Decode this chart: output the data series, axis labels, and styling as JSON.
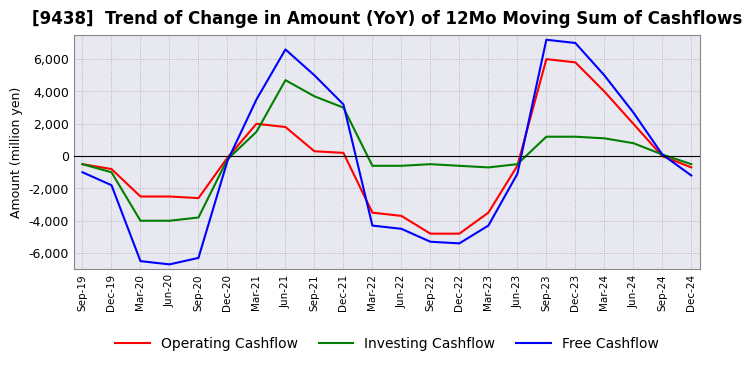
{
  "title": "[9438]  Trend of Change in Amount (YoY) of 12Mo Moving Sum of Cashflows",
  "ylabel": "Amount (million yen)",
  "ylim": [
    -7000,
    7500
  ],
  "yticks": [
    -6000,
    -4000,
    -2000,
    0,
    2000,
    4000,
    6000
  ],
  "x_labels": [
    "Sep-19",
    "Dec-19",
    "Mar-20",
    "Jun-20",
    "Sep-20",
    "Dec-20",
    "Mar-21",
    "Jun-21",
    "Sep-21",
    "Dec-21",
    "Mar-22",
    "Jun-22",
    "Sep-22",
    "Dec-22",
    "Mar-23",
    "Jun-23",
    "Sep-23",
    "Dec-23",
    "Mar-24",
    "Jun-24",
    "Sep-24",
    "Dec-24"
  ],
  "operating": [
    -500,
    -800,
    -2500,
    -2500,
    -2600,
    -100,
    2000,
    1800,
    300,
    200,
    -3500,
    -3700,
    -4800,
    -4800,
    -3500,
    -600,
    6000,
    5800,
    4000,
    2000,
    0,
    -700
  ],
  "investing": [
    -500,
    -1000,
    -4000,
    -4000,
    -3800,
    -200,
    1500,
    4700,
    3700,
    3000,
    -600,
    -600,
    -500,
    -600,
    -700,
    -500,
    1200,
    1200,
    1100,
    800,
    100,
    -500
  ],
  "free": [
    -1000,
    -1800,
    -6500,
    -6700,
    -6300,
    -300,
    3500,
    6600,
    5000,
    3200,
    -4300,
    -4500,
    -5300,
    -5400,
    -4300,
    -1100,
    7200,
    7000,
    5000,
    2700,
    100,
    -1200
  ],
  "operating_color": "#FF0000",
  "investing_color": "#008000",
  "free_color": "#0000FF",
  "background_color": "#FFFFFF",
  "plot_bg_color": "#E8E8F0",
  "grid_color": "#AAAAAA",
  "title_fontsize": 12,
  "axis_fontsize": 9,
  "legend_fontsize": 10
}
